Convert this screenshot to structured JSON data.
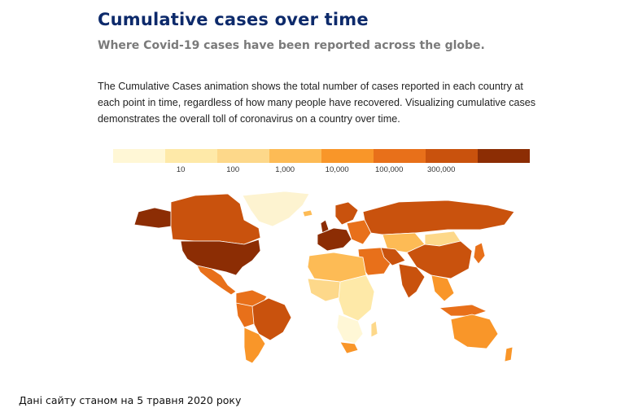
{
  "header": {
    "title": "Cumulative cases over time",
    "subtitle": "Where Covid-19 cases have been reported across the globe."
  },
  "description": "The Cumulative Cases animation shows the total number of cases reported in each country at each point in time, regardless of how many people have recovered. Visualizing cumulative cases demonstrates the overall toll of coronavirus on a country over time.",
  "legend": {
    "colors": [
      "#fff7d6",
      "#fee9a8",
      "#fdd88a",
      "#fdbb55",
      "#f99629",
      "#e8701a",
      "#c9520d",
      "#8c2d04"
    ],
    "ticks": [
      "10",
      "100",
      "1,000",
      "10,000",
      "100,000",
      "300,000"
    ]
  },
  "map": {
    "colors": {
      "very_low": "#fff7d6",
      "low": "#fee9a8",
      "light": "#fdd88a",
      "mid": "#fdbb55",
      "orange": "#f99629",
      "dark_orange": "#e8701a",
      "high": "#c9520d",
      "highest": "#8c2d04",
      "no_data": "#fdf3d0",
      "border": "#ffffff"
    }
  },
  "footnote": "Дані сайту станом на 5 травня 2020 року"
}
